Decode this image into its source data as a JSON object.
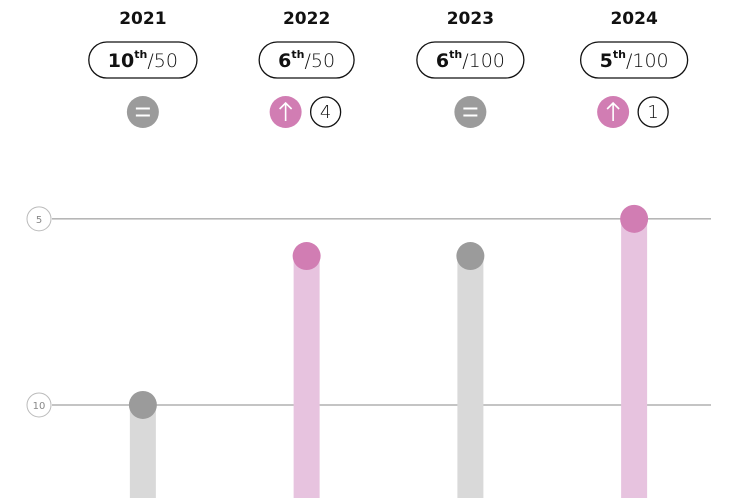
{
  "chart_data": {
    "type": "lollipop",
    "categories": [
      "2021",
      "2022",
      "2023",
      "2024"
    ],
    "values": [
      10,
      6,
      6,
      5
    ],
    "suffixes": [
      "th",
      "th",
      "th",
      "th"
    ],
    "separator": "/",
    "totals": [
      50,
      50,
      100,
      100
    ],
    "change": [
      0,
      4,
      0,
      1
    ],
    "ylim": [
      3.5,
      12.5
    ],
    "inverted": true,
    "yticks": [
      5,
      10
    ],
    "grid": true,
    "up_color": "#d17db3",
    "up_bar_color": "#e7c3df",
    "same_color": "#9b9b9b",
    "same_bar_color": "#d9d9d9"
  }
}
